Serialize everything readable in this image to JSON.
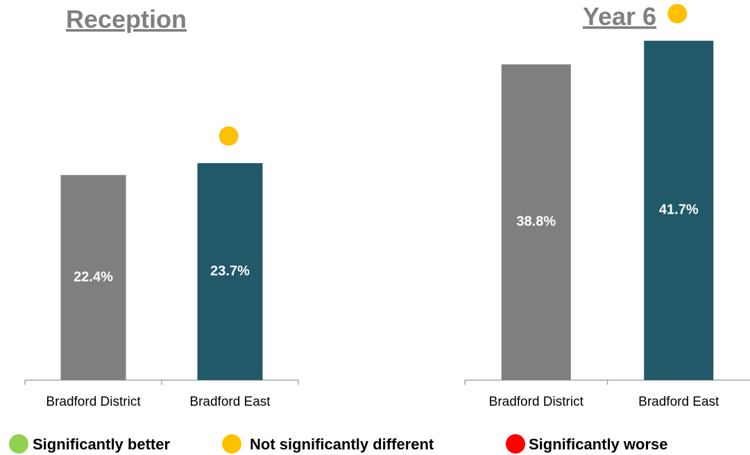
{
  "chart_data": [
    {
      "type": "bar",
      "title": "Reception",
      "categories": [
        "Bradford District",
        "Bradford East"
      ],
      "values": [
        22.4,
        23.7
      ],
      "value_labels": [
        "22.4%",
        "23.7%"
      ],
      "bar_colors": [
        "#7f7f7f",
        "#215968"
      ],
      "significance": [
        null,
        "not-significant"
      ],
      "ylim": [
        0,
        40
      ],
      "grid": false
    },
    {
      "type": "bar",
      "title": "Year 6",
      "categories": [
        "Bradford District",
        "Bradford East"
      ],
      "values": [
        38.8,
        41.7
      ],
      "value_labels": [
        "38.8%",
        "41.7%"
      ],
      "bar_colors": [
        "#7f7f7f",
        "#215968"
      ],
      "significance": [
        null,
        "not-significant"
      ],
      "ylim": [
        0,
        45
      ],
      "grid": false
    }
  ],
  "legend": {
    "placement": "bottom",
    "items": [
      {
        "key": "better",
        "label": "Significantly better",
        "color": "#92d050"
      },
      {
        "key": "not-significant",
        "label": "Not significantly different",
        "color": "#ffc000"
      },
      {
        "key": "worse",
        "label": "Significantly worse",
        "color": "#ff0000"
      }
    ]
  }
}
